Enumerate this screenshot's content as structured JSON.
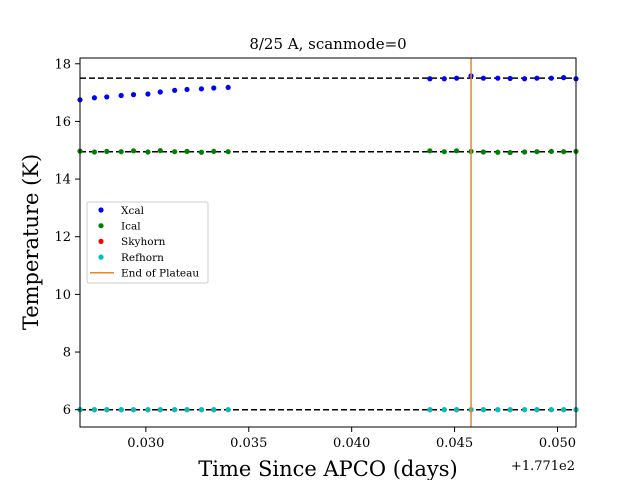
{
  "chart_data": {
    "type": "scatter",
    "title": "8/25 A, scanmode=0",
    "xlabel": "Time Since APCO (days)",
    "ylabel": "Temperature (K)",
    "x_offset_label": "+1.771e2",
    "xlim": [
      0.0268,
      0.0509
    ],
    "ylim": [
      5.4,
      18.2
    ],
    "xticks": [
      0.03,
      0.035,
      0.04,
      0.045,
      0.05
    ],
    "xtick_labels": [
      "0.030",
      "0.035",
      "0.040",
      "0.045",
      "0.050"
    ],
    "yticks": [
      6,
      8,
      10,
      12,
      14,
      16,
      18
    ],
    "ytick_labels": [
      "6",
      "8",
      "10",
      "12",
      "14",
      "16",
      "18"
    ],
    "grid": false,
    "legend_position": "center-left",
    "reference_lines": [
      17.5,
      14.95,
      6.0
    ],
    "end_of_plateau_x": 0.0458,
    "legend": [
      "Xcal",
      "Ical",
      "Skyhorn",
      "Refhorn",
      "End of Plateau"
    ],
    "series": [
      {
        "name": "Xcal",
        "color": "#0000ff",
        "x": [
          0.0268,
          0.0275,
          0.0281,
          0.0288,
          0.0294,
          0.0301,
          0.0307,
          0.0314,
          0.032,
          0.0327,
          0.0333,
          0.034,
          0.0438,
          0.0445,
          0.0451,
          0.0458,
          0.0464,
          0.0471,
          0.0477,
          0.0484,
          0.049,
          0.0497,
          0.0503,
          0.0509
        ],
        "y": [
          16.75,
          16.82,
          16.85,
          16.9,
          16.93,
          16.95,
          17.02,
          17.08,
          17.11,
          17.13,
          17.16,
          17.18,
          17.48,
          17.48,
          17.5,
          17.58,
          17.5,
          17.5,
          17.49,
          17.48,
          17.5,
          17.5,
          17.52,
          17.48
        ]
      },
      {
        "name": "Ical",
        "color": "#008000",
        "x": [
          0.0268,
          0.0275,
          0.0281,
          0.0288,
          0.0294,
          0.0301,
          0.0307,
          0.0314,
          0.032,
          0.0327,
          0.0333,
          0.034,
          0.0438,
          0.0445,
          0.0451,
          0.0458,
          0.0464,
          0.0471,
          0.0477,
          0.0484,
          0.049,
          0.0497,
          0.0503,
          0.0509
        ],
        "y": [
          14.97,
          14.94,
          14.96,
          14.95,
          14.98,
          14.94,
          14.99,
          14.95,
          14.96,
          14.93,
          14.96,
          14.95,
          14.98,
          14.95,
          14.98,
          14.96,
          14.94,
          14.93,
          14.92,
          14.94,
          14.95,
          14.96,
          14.95,
          14.96
        ]
      },
      {
        "name": "Skyhorn",
        "color": "#ff0000",
        "x": [
          0.0268,
          0.0275,
          0.0281,
          0.0288,
          0.0294,
          0.0301,
          0.0307,
          0.0314,
          0.032,
          0.0327,
          0.0333,
          0.034,
          0.0438,
          0.0445,
          0.0451,
          0.0458,
          0.0464,
          0.0471,
          0.0477,
          0.0484,
          0.049,
          0.0497,
          0.0503,
          0.0509
        ],
        "y": [
          6.0,
          6.0,
          6.0,
          6.0,
          6.0,
          6.0,
          6.0,
          6.0,
          6.0,
          6.0,
          6.0,
          6.0,
          6.0,
          6.0,
          6.0,
          6.0,
          6.0,
          6.0,
          6.0,
          6.0,
          6.0,
          6.0,
          6.0,
          6.0
        ]
      },
      {
        "name": "Refhorn",
        "color": "#00bfbf",
        "x": [
          0.0268,
          0.0275,
          0.0281,
          0.0288,
          0.0294,
          0.0301,
          0.0307,
          0.0314,
          0.032,
          0.0327,
          0.0333,
          0.034,
          0.0438,
          0.0445,
          0.0451,
          0.0458,
          0.0464,
          0.0471,
          0.0477,
          0.0484,
          0.049,
          0.0497,
          0.0503,
          0.0509
        ],
        "y": [
          6.0,
          6.0,
          6.0,
          6.0,
          6.0,
          6.0,
          6.0,
          6.0,
          6.0,
          6.0,
          6.0,
          6.0,
          6.0,
          6.0,
          6.0,
          6.0,
          6.0,
          6.0,
          6.0,
          6.0,
          6.0,
          6.0,
          6.0,
          6.0
        ]
      }
    ],
    "plateau_line_color": "#e8872a",
    "reference_line_color": "#000000"
  }
}
